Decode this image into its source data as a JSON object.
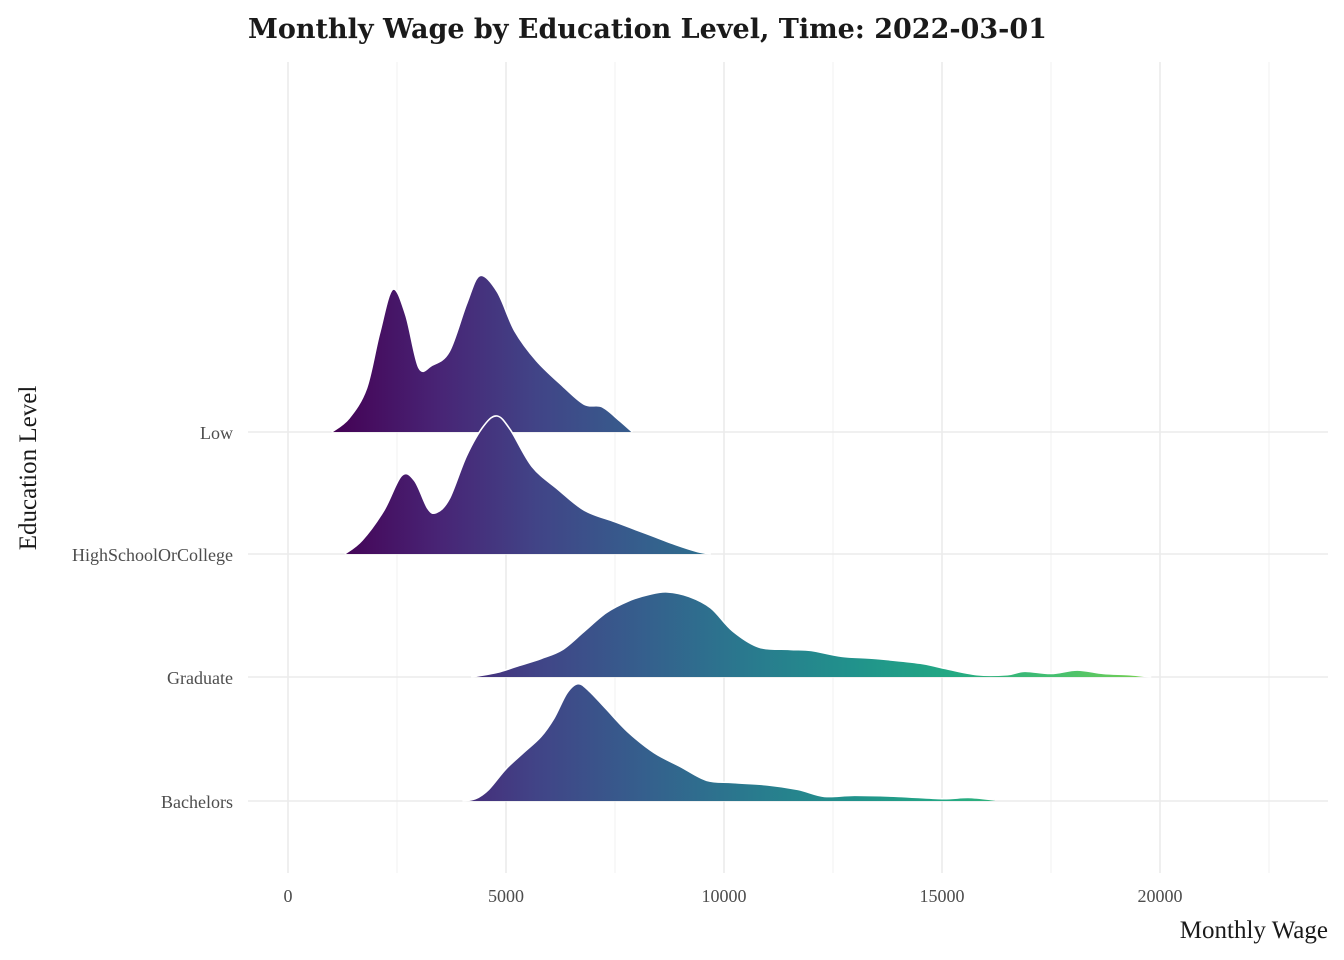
{
  "chart_data": {
    "type": "ridgeline",
    "title": "Monthly Wage by Education Level, Time: 2022-03-01",
    "xlabel": "Monthly Wage",
    "ylabel": "Education Level",
    "xlim": [
      -1000,
      23500
    ],
    "x_ticks": [
      0,
      5000,
      10000,
      15000,
      20000
    ],
    "categories": [
      "Bachelors",
      "Graduate",
      "HighSchoolOrCollege",
      "Low"
    ],
    "fill_scale": "viridis gradient along x (dark purple low, yellow-green high)",
    "grid": true,
    "legend": "none",
    "series": [
      {
        "name": "Bachelors",
        "points": [
          [
            4000,
            0
          ],
          [
            4300,
            0.1
          ],
          [
            4600,
            0.5
          ],
          [
            5000,
            1.4
          ],
          [
            5400,
            2.1
          ],
          [
            5800,
            2.8
          ],
          [
            6100,
            3.6
          ],
          [
            6400,
            4.7
          ],
          [
            6650,
            5.1
          ],
          [
            6900,
            4.8
          ],
          [
            7300,
            4.0
          ],
          [
            7800,
            3.0
          ],
          [
            8400,
            2.1
          ],
          [
            9000,
            1.5
          ],
          [
            9600,
            0.9
          ],
          [
            10200,
            0.8
          ],
          [
            11000,
            0.7
          ],
          [
            11700,
            0.5
          ],
          [
            12300,
            0.2
          ],
          [
            13000,
            0.25
          ],
          [
            14000,
            0.2
          ],
          [
            15000,
            0.1
          ],
          [
            15600,
            0.15
          ],
          [
            16200,
            0.05
          ]
        ]
      },
      {
        "name": "Graduate",
        "points": [
          [
            4200,
            0
          ],
          [
            4800,
            0.2
          ],
          [
            5300,
            0.5
          ],
          [
            5800,
            0.8
          ],
          [
            6300,
            1.2
          ],
          [
            6800,
            2.0
          ],
          [
            7300,
            2.8
          ],
          [
            7800,
            3.3
          ],
          [
            8300,
            3.6
          ],
          [
            8700,
            3.7
          ],
          [
            9200,
            3.5
          ],
          [
            9700,
            3.0
          ],
          [
            10200,
            2.0
          ],
          [
            10800,
            1.3
          ],
          [
            11500,
            1.2
          ],
          [
            12000,
            1.15
          ],
          [
            12700,
            0.9
          ],
          [
            13500,
            0.8
          ],
          [
            14500,
            0.6
          ],
          [
            15000,
            0.4
          ],
          [
            15800,
            0.1
          ],
          [
            16500,
            0.1
          ],
          [
            16900,
            0.25
          ],
          [
            17500,
            0.15
          ],
          [
            18100,
            0.3
          ],
          [
            18700,
            0.15
          ],
          [
            19300,
            0.1
          ],
          [
            19800,
            0
          ]
        ]
      },
      {
        "name": "HighSchoolOrCollege",
        "points": [
          [
            1300,
            0
          ],
          [
            1700,
            0.6
          ],
          [
            2200,
            1.9
          ],
          [
            2600,
            3.4
          ],
          [
            2900,
            3.2
          ],
          [
            3200,
            2.0
          ],
          [
            3400,
            1.8
          ],
          [
            3700,
            2.4
          ],
          [
            4100,
            4.3
          ],
          [
            4500,
            5.6
          ],
          [
            4800,
            6.0
          ],
          [
            5100,
            5.4
          ],
          [
            5600,
            3.8
          ],
          [
            6200,
            2.8
          ],
          [
            6800,
            1.9
          ],
          [
            7500,
            1.4
          ],
          [
            8200,
            0.9
          ],
          [
            8900,
            0.4
          ],
          [
            9400,
            0.1
          ],
          [
            9700,
            0
          ]
        ]
      },
      {
        "name": "Low",
        "points": [
          [
            1000,
            0
          ],
          [
            1400,
            0.6
          ],
          [
            1800,
            1.9
          ],
          [
            2100,
            4.3
          ],
          [
            2400,
            6.2
          ],
          [
            2700,
            5.1
          ],
          [
            3000,
            2.8
          ],
          [
            3300,
            2.9
          ],
          [
            3700,
            3.5
          ],
          [
            4100,
            5.6
          ],
          [
            4400,
            6.8
          ],
          [
            4800,
            6.1
          ],
          [
            5200,
            4.4
          ],
          [
            5700,
            3.1
          ],
          [
            6300,
            2.0
          ],
          [
            6800,
            1.2
          ],
          [
            7200,
            1.1
          ],
          [
            7600,
            0.5
          ],
          [
            7900,
            0
          ]
        ]
      }
    ]
  }
}
